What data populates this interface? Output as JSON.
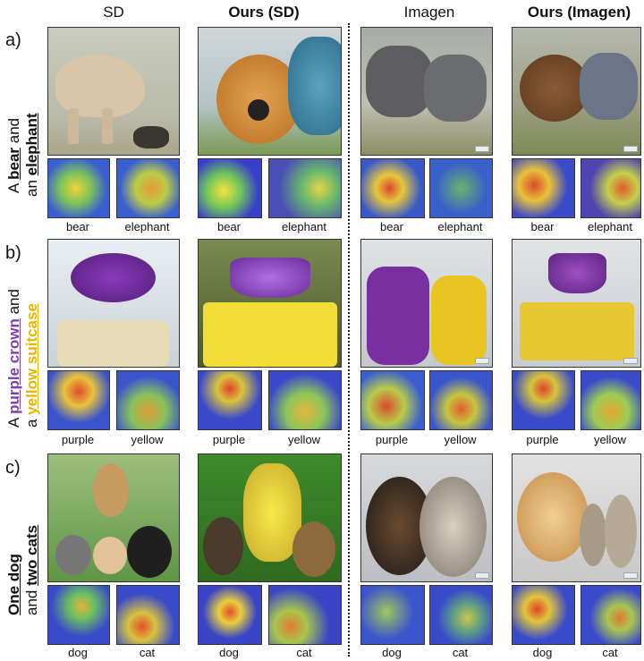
{
  "headers": {
    "sd": "SD",
    "ours_sd": "Ours (SD)",
    "imagen": "Imagen",
    "ours_imagen": "Ours (Imagen)"
  },
  "rows": [
    {
      "letter": "a)",
      "prompt_parts": [
        "A ",
        "bear",
        " and",
        "an ",
        "elephant"
      ],
      "tokens": [
        "bear",
        "elephant"
      ]
    },
    {
      "letter": "b)",
      "prompt_parts": [
        "A ",
        "purple crown",
        " and",
        "a ",
        "yellow suitcase"
      ],
      "tokens": [
        "purple",
        "yellow"
      ]
    },
    {
      "letter": "c)",
      "prompt_parts": [
        "One dog",
        "",
        "and ",
        "two cats",
        ""
      ],
      "tokens": [
        "dog",
        "cat"
      ]
    }
  ],
  "colors": {
    "purple_word": "#7b3fb3",
    "yellow_word": "#e8b400",
    "heatmap_base": "#3b3fc9"
  }
}
